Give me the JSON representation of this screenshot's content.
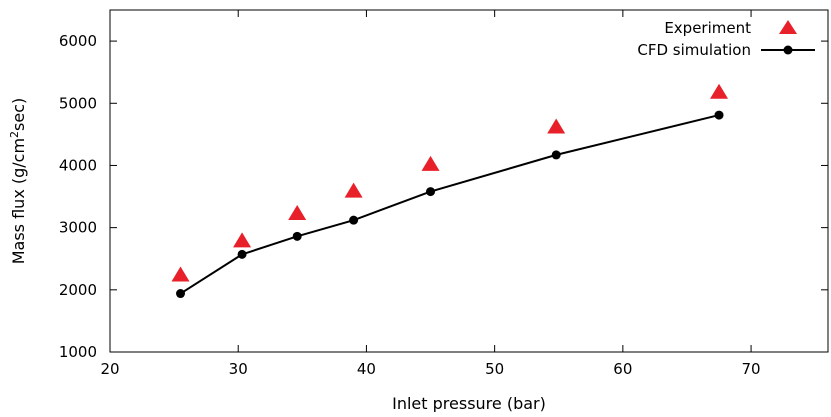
{
  "chart_data": {
    "type": "scatter",
    "xlabel": "Inlet pressure (bar)",
    "ylabel": {
      "prefix": "Mass flux (g/cm",
      "superscript": "2",
      "suffix": "sec)"
    },
    "xlim": [
      20,
      76
    ],
    "ylim": [
      1000,
      6500
    ],
    "x_ticks": [
      20,
      30,
      40,
      50,
      60,
      70
    ],
    "y_ticks": [
      1000,
      2000,
      3000,
      4000,
      5000,
      6000
    ],
    "grid": false,
    "legend_position": "top-right",
    "series": [
      {
        "name": "Experiment",
        "style": "markers",
        "marker": "triangle",
        "color": "#e8202a",
        "points": [
          {
            "x": 25.5,
            "y": 2230
          },
          {
            "x": 30.3,
            "y": 2780
          },
          {
            "x": 34.6,
            "y": 3220
          },
          {
            "x": 39.0,
            "y": 3580
          },
          {
            "x": 45.0,
            "y": 4010
          },
          {
            "x": 54.8,
            "y": 4610
          },
          {
            "x": 67.5,
            "y": 5170
          }
        ]
      },
      {
        "name": "CFD simulation",
        "style": "line-markers",
        "marker": "circle",
        "color": "#000000",
        "points": [
          {
            "x": 25.5,
            "y": 1940
          },
          {
            "x": 30.3,
            "y": 2570
          },
          {
            "x": 34.6,
            "y": 2860
          },
          {
            "x": 39.0,
            "y": 3120
          },
          {
            "x": 45.0,
            "y": 3580
          },
          {
            "x": 54.8,
            "y": 4170
          },
          {
            "x": 67.5,
            "y": 4810
          }
        ]
      }
    ]
  }
}
